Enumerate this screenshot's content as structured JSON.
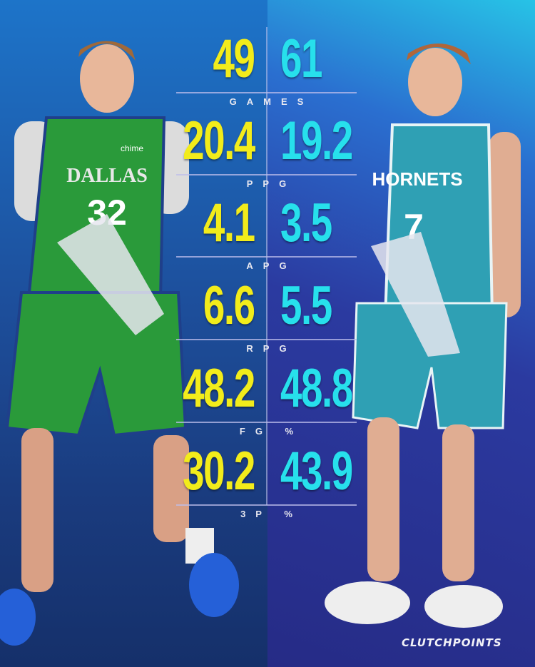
{
  "colors": {
    "left_value": "#f2ec1b",
    "right_value": "#27e0ec",
    "left_jersey": "#2a9a3a",
    "right_jersey": "#2fa0b4"
  },
  "left_player": {
    "jersey_text": "DALLAS",
    "number": "32",
    "sponsor": "chime"
  },
  "right_player": {
    "jersey_text": "HORNETS",
    "number": "7"
  },
  "stats": [
    {
      "label": "GAMES",
      "left": "49",
      "right": "61"
    },
    {
      "label": "PPG",
      "left": "20.4",
      "right": "19.2"
    },
    {
      "label": "APG",
      "left": "4.1",
      "right": "3.5"
    },
    {
      "label": "RPG",
      "left": "6.6",
      "right": "5.5"
    },
    {
      "label": "FG %",
      "left": "48.2",
      "right": "48.8"
    },
    {
      "label": "3P %",
      "left": "30.2",
      "right": "43.9"
    }
  ],
  "brand": "CLUTCHPOINTS"
}
